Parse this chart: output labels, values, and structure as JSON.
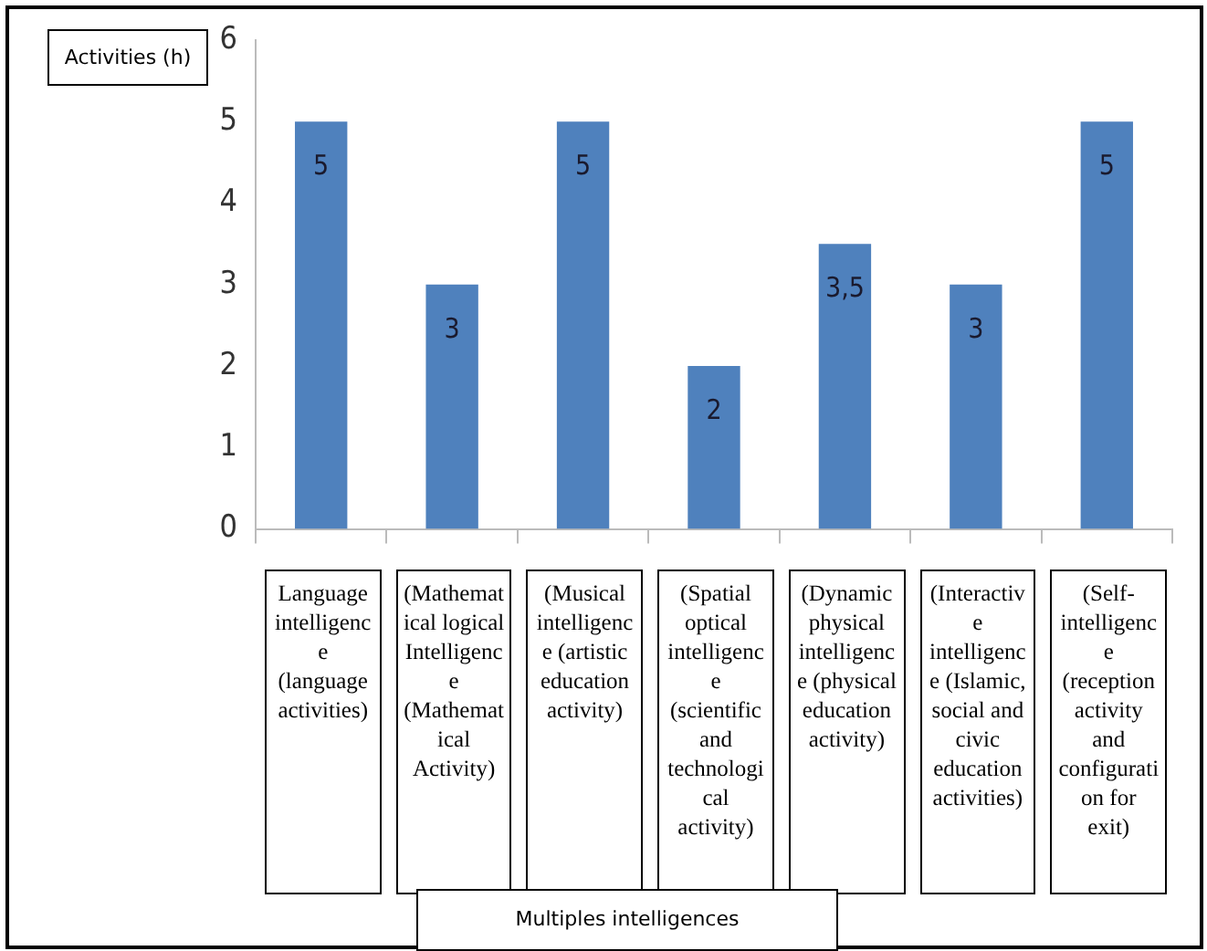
{
  "chart_data": {
    "type": "bar",
    "xlabel": "Multiples intelligences",
    "ylabel": "Activities (h)",
    "categories": [
      "Language intelligence (language activities)",
      "(Mathematical logical Intelligence (Mathematical Activity)",
      "(Musical intelligence (artistic education activity)",
      "(Spatial optical intelligence (scientific and technological activity)",
      "(Dynamic physical intelligence (physical education activity)",
      "(Interactive intelligence (Islamic, social and civic education activities)",
      "(Self-intelligence (reception activity and configuration for exit)"
    ],
    "values": [
      5,
      3,
      5,
      2,
      3.5,
      3,
      5
    ],
    "value_labels": [
      "5",
      "3",
      "5",
      "2",
      "3,5",
      "3",
      "5"
    ],
    "color": "#4f81bd",
    "ylim": [
      0,
      6
    ],
    "yticks": [
      0,
      1,
      2,
      3,
      4,
      5,
      6
    ],
    "grid": false,
    "legend": false
  }
}
